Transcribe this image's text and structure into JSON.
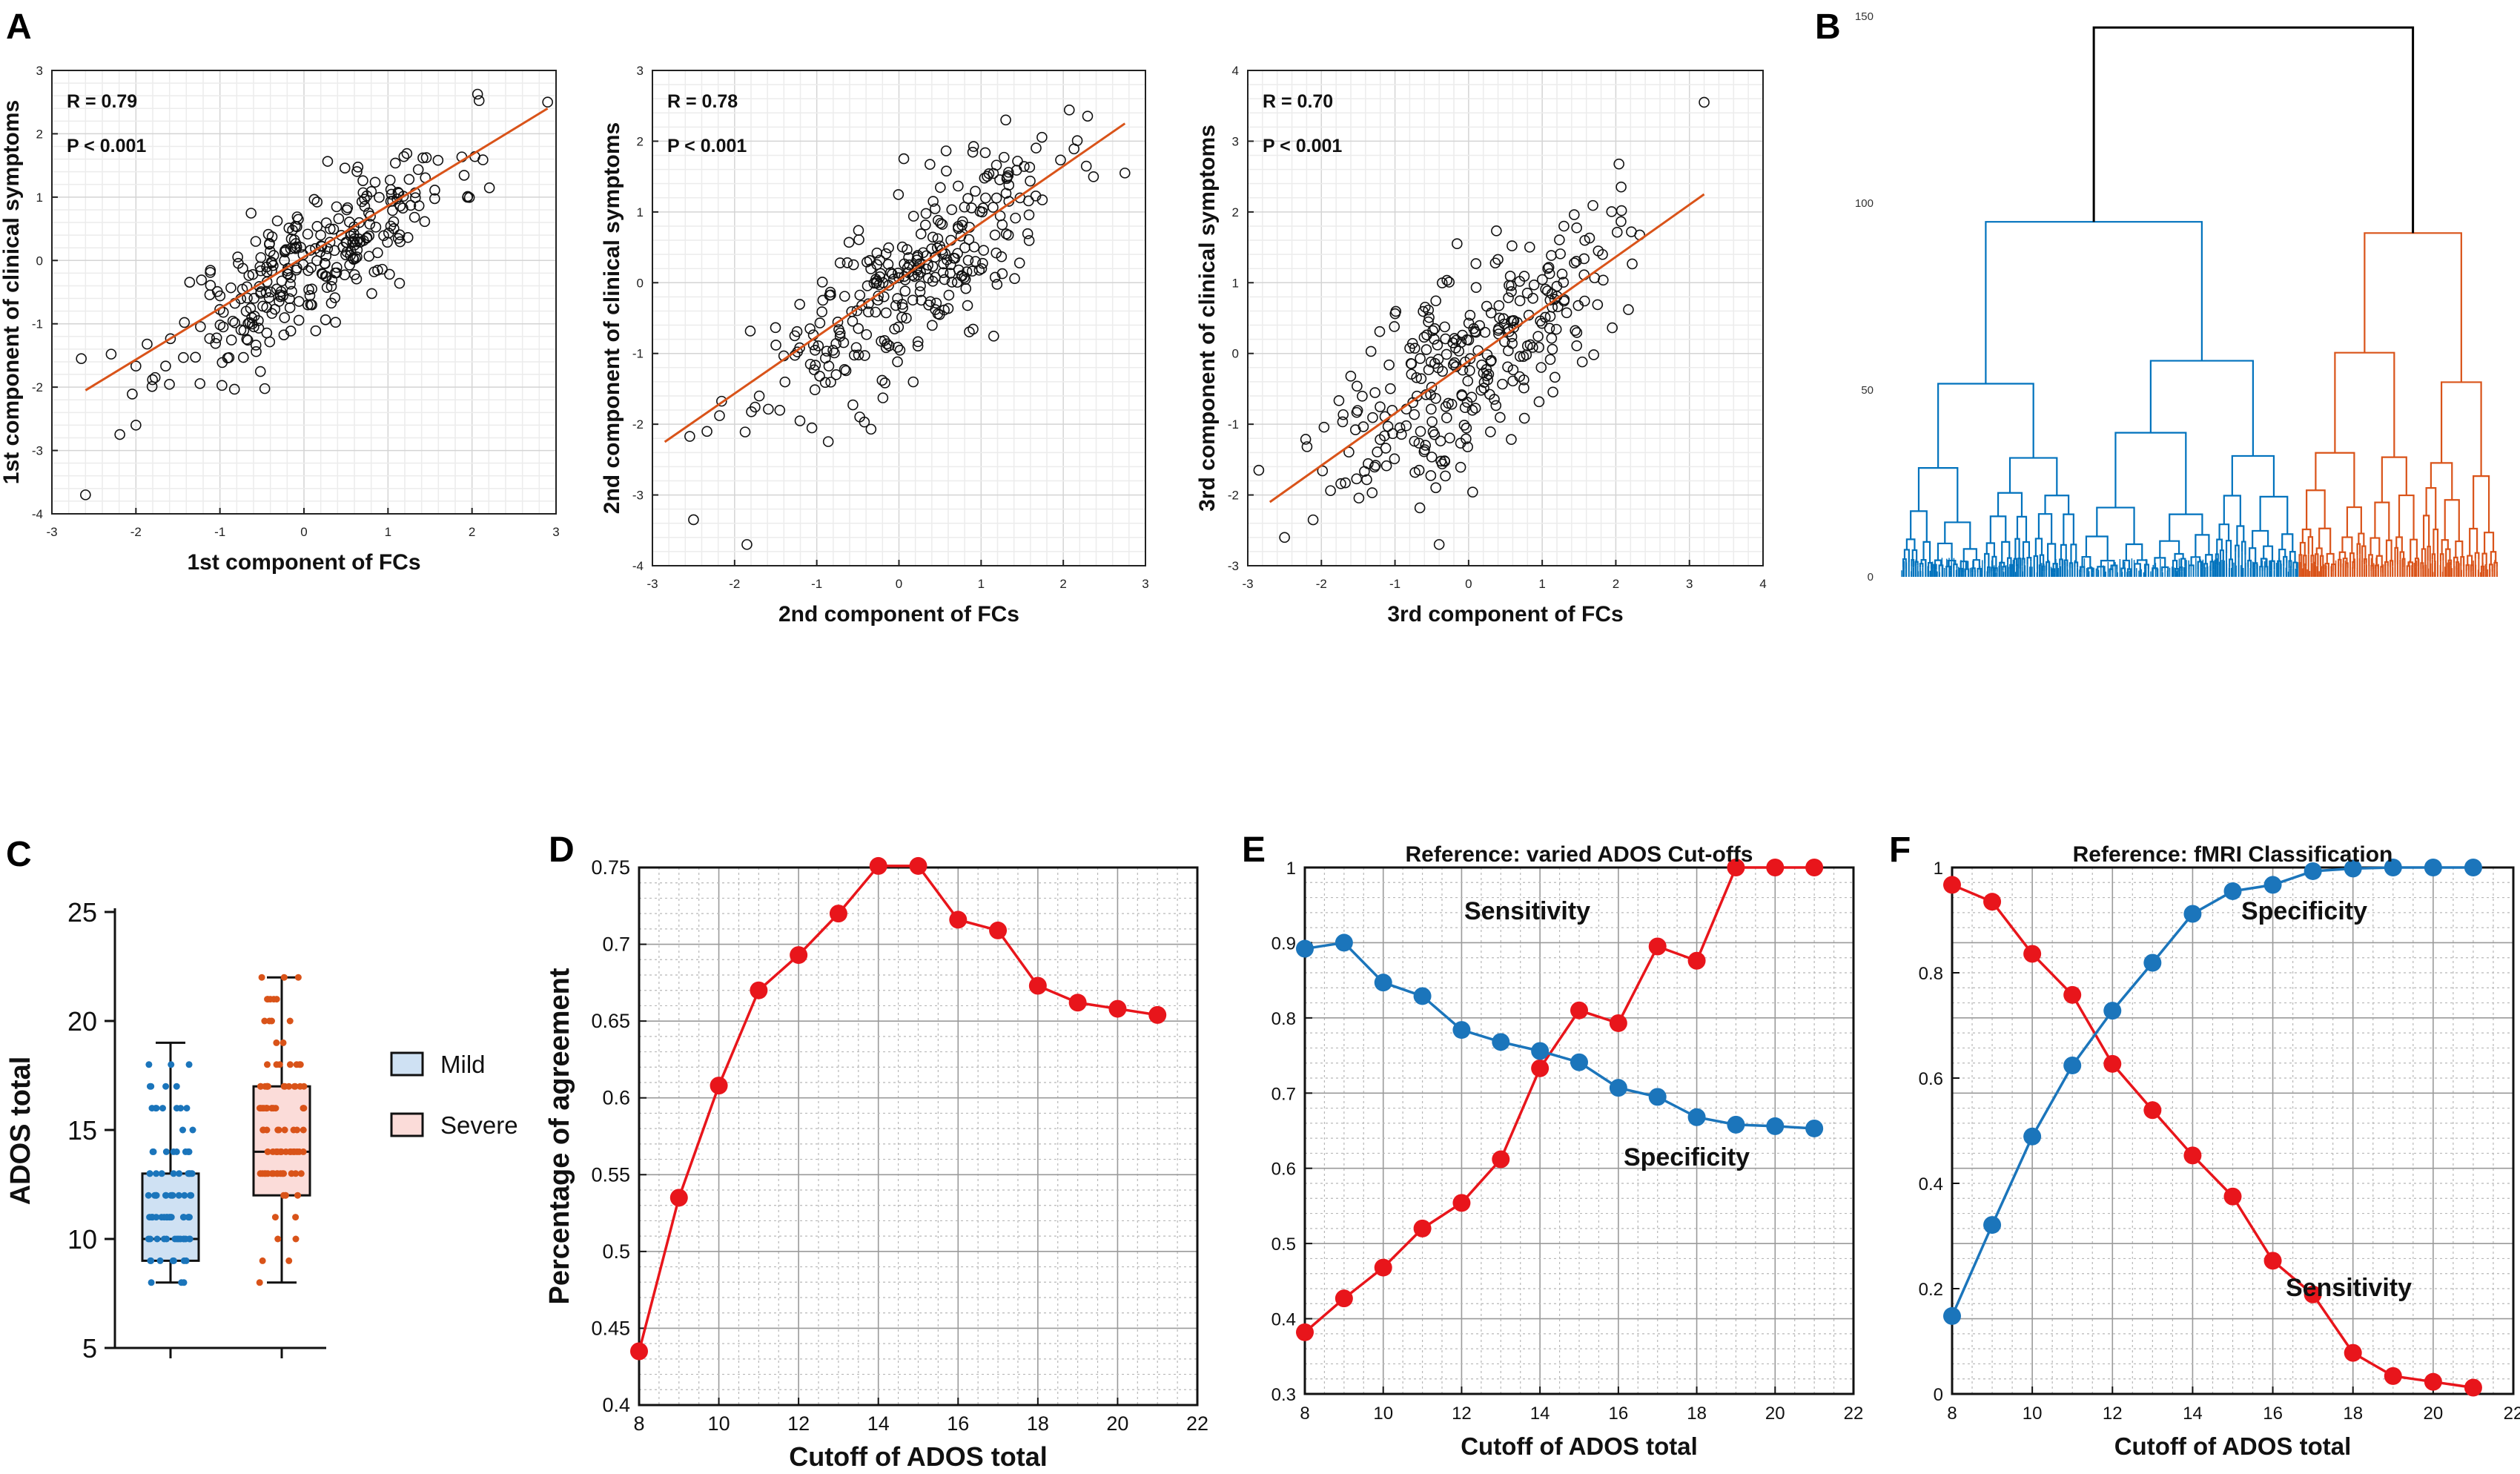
{
  "panel_labels": {
    "A": "A",
    "B": "B",
    "C": "C",
    "D": "D",
    "E": "E",
    "F": "F"
  },
  "colors": {
    "red": "#e8151b",
    "blue": "#1b75bb",
    "orange": "#d95319",
    "dendro_blue": "#0072bd",
    "black": "#000000"
  },
  "chart_data": [
    {
      "id": "A1",
      "type": "scatter",
      "xlabel": "1st component of FCs",
      "ylabel": "1st component of clinical symptoms",
      "xlim": [
        -3,
        3
      ],
      "ylim": [
        -4,
        3
      ],
      "xticks": [
        "-3",
        "-2",
        "-1",
        "0",
        "1",
        "2",
        "3"
      ],
      "yticks": [
        "-4",
        "-3",
        "-2",
        "-1",
        "0",
        "1",
        "2",
        "3"
      ],
      "stat_r": "R = 0.79",
      "stat_p": "P < 0.001",
      "fit": {
        "x1": -2.6,
        "y1": -2.05,
        "x2": 2.9,
        "y2": 2.4
      },
      "n_points": 300,
      "x_mean": 0.1,
      "x_sd": 0.85,
      "y_sd": 0.9,
      "slope": 0.81,
      "noise": 0.52,
      "extremes": [
        [
          -2.6,
          -3.7
        ],
        [
          2.9,
          2.5
        ],
        [
          -2.65,
          -1.55
        ],
        [
          -2.0,
          -2.6
        ]
      ]
    },
    {
      "id": "A2",
      "type": "scatter",
      "xlabel": "2nd component of FCs",
      "ylabel": "2nd component of clinical symptoms",
      "xlim": [
        -3,
        3
      ],
      "ylim": [
        -4,
        3
      ],
      "xticks": [
        "-3",
        "-2",
        "-1",
        "0",
        "1",
        "2",
        "3"
      ],
      "yticks": [
        "-4",
        "-3",
        "-2",
        "-1",
        "0",
        "1",
        "2",
        "3"
      ],
      "stat_r": "R = 0.78",
      "stat_p": "P < 0.001",
      "fit": {
        "x1": -2.85,
        "y1": -2.25,
        "x2": 2.75,
        "y2": 2.25
      },
      "n_points": 300,
      "x_mean": 0.1,
      "x_sd": 0.9,
      "y_sd": 0.95,
      "slope": 0.8,
      "noise": 0.58,
      "extremes": [
        [
          -2.5,
          -3.35
        ],
        [
          -1.85,
          -3.7
        ],
        [
          2.75,
          1.55
        ],
        [
          1.3,
          2.3
        ]
      ]
    },
    {
      "id": "A3",
      "type": "scatter",
      "xlabel": "3rd component of FCs",
      "ylabel": "3rd component of clinical symptoms",
      "xlim": [
        -3,
        4
      ],
      "ylim": [
        -3,
        4
      ],
      "xticks": [
        "-3",
        "-2",
        "-1",
        "0",
        "1",
        "2",
        "3",
        "4"
      ],
      "yticks": [
        "-3",
        "-2",
        "-1",
        "0",
        "1",
        "2",
        "3",
        "4"
      ],
      "stat_r": "R = 0.70",
      "stat_p": "P < 0.001",
      "fit": {
        "x1": -2.7,
        "y1": -2.1,
        "x2": 3.2,
        "y2": 2.25
      },
      "n_points": 300,
      "x_mean": 0.05,
      "x_sd": 0.95,
      "y_sd": 0.95,
      "slope": 0.72,
      "noise": 0.7,
      "extremes": [
        [
          3.2,
          3.55
        ],
        [
          -2.5,
          -2.6
        ],
        [
          -2.85,
          -1.65
        ],
        [
          -0.4,
          -2.7
        ]
      ]
    },
    {
      "id": "B",
      "type": "dendrogram",
      "yticks": [
        "0",
        "50",
        "100",
        "150"
      ],
      "ylim": [
        0,
        150
      ],
      "root_height": 147,
      "blue_cluster_height": 95,
      "orange_cluster_height": 92,
      "n_leaves_blue": 170,
      "n_leaves_orange": 80
    },
    {
      "id": "C",
      "type": "box",
      "ylabel": "ADOS total",
      "ylim": [
        5,
        25
      ],
      "yticks": [
        "5",
        "10",
        "15",
        "20",
        "25"
      ],
      "groups": [
        {
          "name": "Mild",
          "min": 8,
          "q1": 9,
          "median": 10,
          "q3": 13,
          "max": 19,
          "n": 90
        },
        {
          "name": "Severe",
          "min": 8,
          "q1": 12,
          "median": 14,
          "q3": 17,
          "max": 22,
          "n": 100
        }
      ]
    },
    {
      "id": "D",
      "type": "line",
      "xlabel": "Cutoff of ADOS total",
      "ylabel": "Percentage of agreement",
      "xlim": [
        8,
        22
      ],
      "ylim": [
        0.4,
        0.75
      ],
      "xticks": [
        "8",
        "10",
        "12",
        "14",
        "16",
        "18",
        "20",
        "22"
      ],
      "yticks": [
        "0.4",
        "0.45",
        "0.5",
        "0.55",
        "0.6",
        "0.65",
        "0.7",
        "0.75"
      ],
      "x": [
        8,
        9,
        10,
        11,
        12,
        13,
        14,
        15,
        16,
        17,
        18,
        19,
        20,
        21
      ],
      "series": [
        {
          "name": "Agreement",
          "color": "red",
          "values": [
            0.435,
            0.535,
            0.608,
            0.67,
            0.693,
            0.72,
            0.751,
            0.751,
            0.716,
            0.709,
            0.673,
            0.662,
            0.658,
            0.654
          ]
        }
      ]
    },
    {
      "id": "E",
      "type": "line",
      "title": "Reference: varied ADOS Cut-offs",
      "xlabel": "Cutoff of ADOS total",
      "xlim": [
        8,
        22
      ],
      "ylim": [
        0.3,
        1
      ],
      "xticks": [
        "8",
        "10",
        "12",
        "14",
        "16",
        "18",
        "20",
        "22"
      ],
      "yticks": [
        "0.3",
        "0.4",
        "0.5",
        "0.6",
        "0.7",
        "0.8",
        "0.9",
        "1"
      ],
      "x": [
        8,
        9,
        10,
        11,
        12,
        13,
        14,
        15,
        16,
        17,
        18,
        19,
        20,
        21
      ],
      "series": [
        {
          "name": "Sensitivity",
          "color": "red",
          "values": [
            0.382,
            0.427,
            0.468,
            0.52,
            0.554,
            0.612,
            0.733,
            0.81,
            0.793,
            0.895,
            0.876,
            1.0,
            1.0,
            1.0
          ]
        },
        {
          "name": "Specificity",
          "color": "blue",
          "values": [
            0.892,
            0.9,
            0.847,
            0.829,
            0.784,
            0.768,
            0.756,
            0.741,
            0.707,
            0.695,
            0.668,
            0.658,
            0.656,
            0.653
          ]
        }
      ],
      "annotations": [
        "Sensitivity",
        "Specificity"
      ]
    },
    {
      "id": "F",
      "type": "line",
      "title": "Reference: fMRI Classification",
      "xlabel": "Cutoff of ADOS total",
      "xlim": [
        8,
        22
      ],
      "ylim": [
        0,
        1
      ],
      "xticks": [
        "8",
        "10",
        "12",
        "14",
        "16",
        "18",
        "20",
        "22"
      ],
      "yticks": [
        "0",
        "0.2",
        "0.4",
        "0.6",
        "0.8",
        "1"
      ],
      "x": [
        8,
        9,
        10,
        11,
        12,
        13,
        14,
        15,
        16,
        17,
        18,
        19,
        20,
        21
      ],
      "series": [
        {
          "name": "Sensitivity",
          "color": "red",
          "values": [
            0.967,
            0.935,
            0.836,
            0.758,
            0.627,
            0.539,
            0.453,
            0.375,
            0.253,
            0.189,
            0.078,
            0.034,
            0.023,
            0.012
          ]
        },
        {
          "name": "Specificity",
          "color": "blue",
          "values": [
            0.148,
            0.321,
            0.489,
            0.624,
            0.728,
            0.819,
            0.912,
            0.955,
            0.967,
            0.993,
            0.998,
            1.0,
            1.0,
            1.0
          ]
        }
      ],
      "annotations": [
        "Specificity",
        "Sensitivity"
      ]
    }
  ]
}
